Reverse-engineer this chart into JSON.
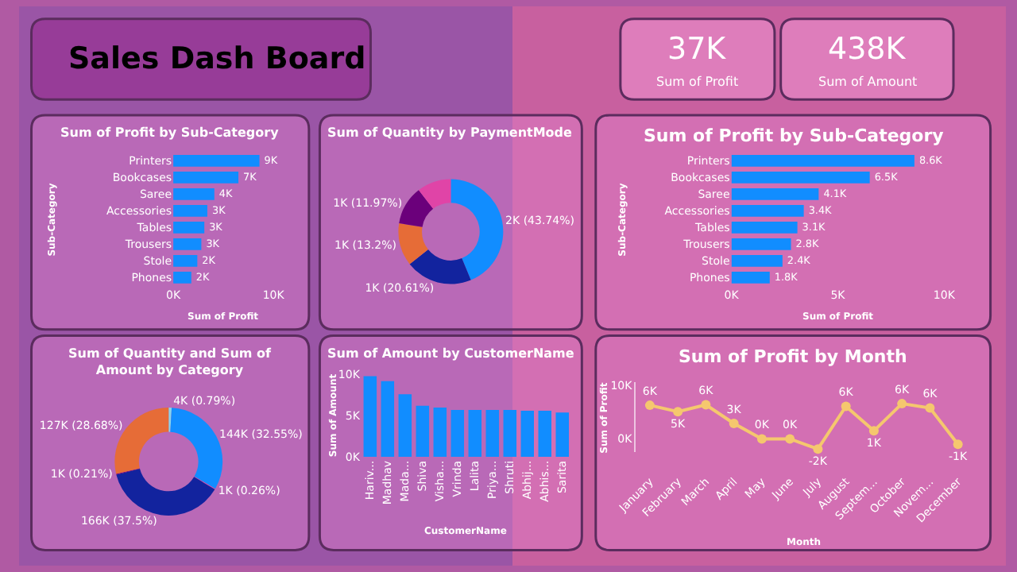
{
  "chart_data": [
    {
      "type": "other",
      "title": "Sales Dash Board"
    },
    {
      "type": "other",
      "title": "37K",
      "subtitle": "Sum of Profit"
    },
    {
      "type": "other",
      "title": "438K",
      "subtitle": "Sum of Amount"
    },
    {
      "type": "bar",
      "orientation": "horizontal",
      "title": "Sum of Profit by Sub-Category",
      "xlabel": "Sum of Profit",
      "ylabel": "Sub-Category",
      "categories": [
        "Printers",
        "Bookcases",
        "Saree",
        "Accessories",
        "Tables",
        "Trousers",
        "Stole",
        "Phones"
      ],
      "values": [
        8600,
        6500,
        4100,
        3400,
        3100,
        2800,
        2400,
        1800
      ],
      "value_labels": [
        "9K",
        "7K",
        "4K",
        "3K",
        "3K",
        "3K",
        "2K",
        "2K"
      ],
      "color": "#118dff",
      "xlim": [
        0,
        10000
      ],
      "xticks": [
        {
          "value": 0,
          "label": "0K"
        },
        {
          "value": 10000,
          "label": "10K"
        }
      ]
    },
    {
      "type": "donut",
      "title": "Sum of Quantity by PaymentMode",
      "categories": [
        null,
        null,
        null,
        null,
        null
      ],
      "values": [
        43.74,
        20.61,
        13.2,
        11.97,
        10.48
      ],
      "value_labels": [
        "2K (43.74%)",
        "1K (20.61%)",
        "1K (13.2%)",
        "1K (11.97%)",
        null
      ],
      "colors": [
        "#118dff",
        "#12239e",
        "#e66c37",
        "#6b007b",
        "#e044a7"
      ]
    },
    {
      "type": "bar",
      "orientation": "horizontal",
      "title": "Sum of Profit by Sub-Category",
      "xlabel": "Sum of Profit",
      "ylabel": "Sub-Category",
      "categories": [
        "Printers",
        "Bookcases",
        "Saree",
        "Accessories",
        "Tables",
        "Trousers",
        "Stole",
        "Phones"
      ],
      "values": [
        8600,
        6500,
        4100,
        3400,
        3100,
        2800,
        2400,
        1800
      ],
      "value_labels": [
        "8.6K",
        "6.5K",
        "4.1K",
        "3.4K",
        "3.1K",
        "2.8K",
        "2.4K",
        "1.8K"
      ],
      "color": "#118dff",
      "xlim": [
        0,
        10000
      ],
      "xticks": [
        {
          "value": 0,
          "label": "0K"
        },
        {
          "value": 5000,
          "label": "5K"
        },
        {
          "value": 10000,
          "label": "10K"
        }
      ]
    },
    {
      "type": "donut",
      "title": "Sum of Quantity and Sum of Amount by Category",
      "categories": [
        null,
        null,
        null,
        null,
        null,
        null
      ],
      "values": [
        4000,
        144000,
        1000,
        166000,
        1000,
        127000
      ],
      "value_labels": [
        "4K (0.79%)",
        "144K (32.55%)",
        "1K (0.26%)",
        "166K (37.5%)",
        "1K (0.21%)",
        "127K (28.68%)"
      ],
      "colors": [
        "#8ad4eb",
        "#118dff",
        "#e044a7",
        "#12239e",
        "#6b007b",
        "#e66c37"
      ]
    },
    {
      "type": "bar",
      "title": "Sum of Amount by CustomerName",
      "xlabel": "CustomerName",
      "ylabel": "Sum of Amount",
      "categories": [
        "Hariv...",
        "Madhav",
        "Mada...",
        "Shiva",
        "Visha...",
        "Vrinda",
        "Lalita",
        "Priya...",
        "Shruti",
        "Abhij...",
        "Abhis...",
        "Sarita"
      ],
      "values": [
        9800,
        9200,
        7600,
        6200,
        6000,
        5700,
        5700,
        5700,
        5700,
        5600,
        5600,
        5400
      ],
      "color": "#118dff",
      "ylim": [
        0,
        10000
      ],
      "yticks": [
        {
          "value": 0,
          "label": "0K"
        },
        {
          "value": 5000,
          "label": "5K"
        },
        {
          "value": 10000,
          "label": "10K"
        }
      ]
    },
    {
      "type": "line",
      "title": "Sum of Profit by Month",
      "xlabel": "Month",
      "ylabel": "Sum of Profit",
      "categories": [
        "January",
        "February",
        "March",
        "April",
        "May",
        "June",
        "July",
        "August",
        "Septem...",
        "October",
        "Novem...",
        "December"
      ],
      "values": [
        6200,
        5000,
        6300,
        2800,
        -100,
        -100,
        -2000,
        6000,
        1400,
        6500,
        5700,
        -1100
      ],
      "value_labels": [
        "6K",
        "5K",
        "6K",
        "3K",
        "0K",
        "0K",
        "-2K",
        "6K",
        "1K",
        "6K",
        "6K",
        "-1K"
      ],
      "color": "#f5c76e",
      "marker": "circle",
      "line_style": "solid",
      "ylim": [
        -2600,
        10500
      ],
      "yticks": [
        {
          "value": 0,
          "label": "0K"
        },
        {
          "value": 10000,
          "label": "10K"
        }
      ]
    }
  ]
}
